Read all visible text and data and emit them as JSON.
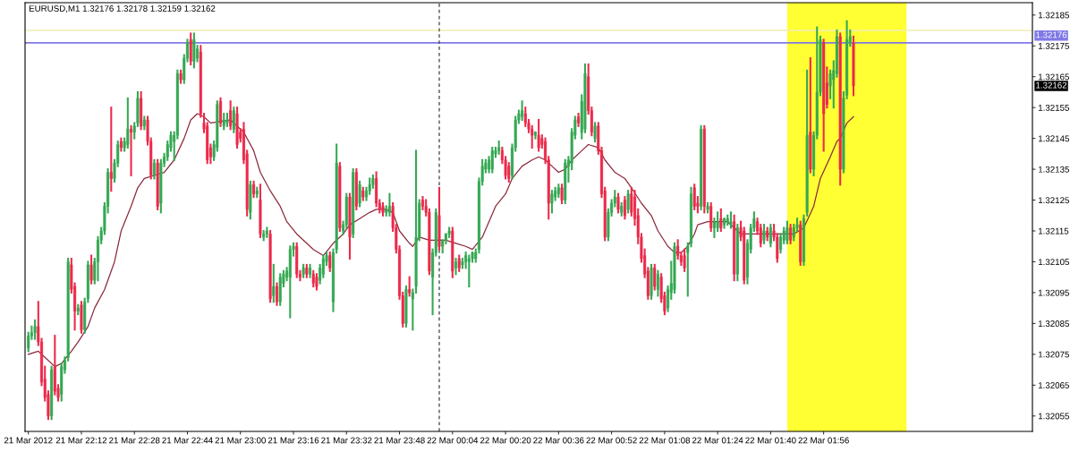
{
  "chart_data": {
    "type": "candlestick",
    "title": "EURUSD,M1 1.32176 1.32178 1.32159 1.32162",
    "x": [
      "2012-03-21T21:56",
      "2012-03-21T21:57",
      "2012-03-21T21:58",
      "2012-03-21T21:59",
      "2012-03-21T22:00",
      "2012-03-21T22:01",
      "2012-03-21T22:02",
      "2012-03-21T22:03",
      "2012-03-21T22:04",
      "2012-03-21T22:05",
      "2012-03-21T22:06",
      "2012-03-21T22:07",
      "2012-03-21T22:08",
      "2012-03-21T22:09",
      "2012-03-21T22:10",
      "2012-03-21T22:11",
      "2012-03-21T22:12",
      "2012-03-21T22:13",
      "2012-03-21T22:14",
      "2012-03-21T22:15",
      "2012-03-21T22:16",
      "2012-03-21T22:17",
      "2012-03-21T22:18",
      "2012-03-21T22:19",
      "2012-03-21T22:20",
      "2012-03-21T22:21",
      "2012-03-21T22:22",
      "2012-03-21T22:23",
      "2012-03-21T22:24",
      "2012-03-21T22:25",
      "2012-03-21T22:26",
      "2012-03-21T22:27",
      "2012-03-21T22:28",
      "2012-03-21T22:29",
      "2012-03-21T22:30",
      "2012-03-21T22:31",
      "2012-03-21T22:32",
      "2012-03-21T22:33",
      "2012-03-21T22:34",
      "2012-03-21T22:35",
      "2012-03-21T22:36",
      "2012-03-21T22:37",
      "2012-03-21T22:38",
      "2012-03-21T22:39",
      "2012-03-21T22:40",
      "2012-03-21T22:41",
      "2012-03-21T22:42",
      "2012-03-21T22:43",
      "2012-03-21T22:44",
      "2012-03-21T22:45",
      "2012-03-21T22:46",
      "2012-03-21T22:47",
      "2012-03-21T22:48",
      "2012-03-21T22:49",
      "2012-03-21T22:50",
      "2012-03-21T22:51",
      "2012-03-21T22:52",
      "2012-03-21T22:53",
      "2012-03-21T22:54",
      "2012-03-21T22:55",
      "2012-03-21T22:56",
      "2012-03-21T22:57",
      "2012-03-21T22:58",
      "2012-03-21T22:59",
      "2012-03-21T23:00",
      "2012-03-21T23:01",
      "2012-03-21T23:02",
      "2012-03-21T23:03",
      "2012-03-21T23:04",
      "2012-03-21T23:05",
      "2012-03-21T23:06",
      "2012-03-21T23:07",
      "2012-03-21T23:08",
      "2012-03-21T23:09",
      "2012-03-21T23:10",
      "2012-03-21T23:11",
      "2012-03-21T23:12",
      "2012-03-21T23:13",
      "2012-03-21T23:14",
      "2012-03-21T23:15",
      "2012-03-21T23:16",
      "2012-03-21T23:17",
      "2012-03-21T23:18",
      "2012-03-21T23:19",
      "2012-03-21T23:20",
      "2012-03-21T23:21",
      "2012-03-21T23:22",
      "2012-03-21T23:23",
      "2012-03-21T23:24",
      "2012-03-21T23:25",
      "2012-03-21T23:26",
      "2012-03-21T23:27",
      "2012-03-21T23:28",
      "2012-03-21T23:29",
      "2012-03-21T23:30",
      "2012-03-21T23:31",
      "2012-03-21T23:32",
      "2012-03-21T23:33",
      "2012-03-21T23:34",
      "2012-03-21T23:35",
      "2012-03-21T23:36",
      "2012-03-21T23:37",
      "2012-03-21T23:38",
      "2012-03-21T23:39",
      "2012-03-21T23:40",
      "2012-03-21T23:41",
      "2012-03-21T23:42",
      "2012-03-21T23:43",
      "2012-03-21T23:44",
      "2012-03-21T23:45",
      "2012-03-21T23:46",
      "2012-03-21T23:47",
      "2012-03-21T23:48",
      "2012-03-21T23:49",
      "2012-03-21T23:50",
      "2012-03-21T23:51",
      "2012-03-21T23:52",
      "2012-03-21T23:53",
      "2012-03-21T23:54",
      "2012-03-21T23:55",
      "2012-03-21T23:56",
      "2012-03-21T23:57",
      "2012-03-21T23:58",
      "2012-03-21T23:59",
      "2012-03-22T00:00",
      "2012-03-22T00:01",
      "2012-03-22T00:02",
      "2012-03-22T00:03",
      "2012-03-22T00:04",
      "2012-03-22T00:05",
      "2012-03-22T00:06",
      "2012-03-22T00:07",
      "2012-03-22T00:08",
      "2012-03-22T00:09",
      "2012-03-22T00:10",
      "2012-03-22T00:11",
      "2012-03-22T00:12",
      "2012-03-22T00:13",
      "2012-03-22T00:14",
      "2012-03-22T00:15",
      "2012-03-22T00:16",
      "2012-03-22T00:17",
      "2012-03-22T00:18",
      "2012-03-22T00:19",
      "2012-03-22T00:20",
      "2012-03-22T00:21",
      "2012-03-22T00:22",
      "2012-03-22T00:23",
      "2012-03-22T00:24",
      "2012-03-22T00:25",
      "2012-03-22T00:26",
      "2012-03-22T00:27",
      "2012-03-22T00:28",
      "2012-03-22T00:29",
      "2012-03-22T00:30",
      "2012-03-22T00:31",
      "2012-03-22T00:32",
      "2012-03-22T00:33",
      "2012-03-22T00:34",
      "2012-03-22T00:35",
      "2012-03-22T00:36",
      "2012-03-22T00:37",
      "2012-03-22T00:38",
      "2012-03-22T00:39",
      "2012-03-22T00:40",
      "2012-03-22T00:41",
      "2012-03-22T00:42",
      "2012-03-22T00:43",
      "2012-03-22T00:44",
      "2012-03-22T00:45",
      "2012-03-22T00:46",
      "2012-03-22T00:47",
      "2012-03-22T00:48",
      "2012-03-22T00:49",
      "2012-03-22T00:50",
      "2012-03-22T00:51",
      "2012-03-22T00:52",
      "2012-03-22T00:53",
      "2012-03-22T00:54",
      "2012-03-22T00:55",
      "2012-03-22T00:56",
      "2012-03-22T00:57",
      "2012-03-22T00:58",
      "2012-03-22T00:59",
      "2012-03-22T01:00",
      "2012-03-22T01:01",
      "2012-03-22T01:02",
      "2012-03-22T01:03",
      "2012-03-22T01:04",
      "2012-03-22T01:05",
      "2012-03-22T01:06",
      "2012-03-22T01:07",
      "2012-03-22T01:08",
      "2012-03-22T01:09",
      "2012-03-22T01:10",
      "2012-03-22T01:11",
      "2012-03-22T01:12",
      "2012-03-22T01:13",
      "2012-03-22T01:14",
      "2012-03-22T01:15",
      "2012-03-22T01:16",
      "2012-03-22T01:17",
      "2012-03-22T01:18",
      "2012-03-22T01:19",
      "2012-03-22T01:20",
      "2012-03-22T01:21",
      "2012-03-22T01:22",
      "2012-03-22T01:23",
      "2012-03-22T01:24",
      "2012-03-22T01:25",
      "2012-03-22T01:26",
      "2012-03-22T01:27",
      "2012-03-22T01:28",
      "2012-03-22T01:29",
      "2012-03-22T01:30",
      "2012-03-22T01:31",
      "2012-03-22T01:32",
      "2012-03-22T01:33",
      "2012-03-22T01:34",
      "2012-03-22T01:35",
      "2012-03-22T01:36",
      "2012-03-22T01:37",
      "2012-03-22T01:38",
      "2012-03-22T01:39",
      "2012-03-22T01:40",
      "2012-03-22T01:41",
      "2012-03-22T01:42",
      "2012-03-22T01:43",
      "2012-03-22T01:44",
      "2012-03-22T01:45",
      "2012-03-22T01:46",
      "2012-03-22T01:47",
      "2012-03-22T01:48",
      "2012-03-22T01:49",
      "2012-03-22T01:50",
      "2012-03-22T01:51",
      "2012-03-22T01:52",
      "2012-03-22T01:53",
      "2012-03-22T01:54",
      "2012-03-22T01:55",
      "2012-03-22T01:56",
      "2012-03-22T01:57",
      "2012-03-22T01:58",
      "2012-03-22T01:59",
      "2012-03-22T02:00",
      "2012-03-22T02:01",
      "2012-03-22T02:02",
      "2012-03-22T02:03",
      "2012-03-22T02:04",
      "2012-03-22T02:05"
    ],
    "ohlc": [
      [
        1.32077,
        1.32082,
        1.32076,
        1.32081
      ],
      [
        1.32081,
        1.32084,
        1.3208,
        1.32082
      ],
      [
        1.32082,
        1.32086,
        1.3208,
        1.32084
      ],
      [
        1.32084,
        1.32092,
        1.32078,
        1.32079
      ],
      [
        1.32079,
        1.3208,
        1.32065,
        1.32066
      ],
      [
        1.32067,
        1.32071,
        1.3206,
        1.32061
      ],
      [
        1.32062,
        1.32063,
        1.32054,
        1.32055
      ],
      [
        1.32055,
        1.32071,
        1.32054,
        1.3207
      ],
      [
        1.32071,
        1.32081,
        1.32062,
        1.32063
      ],
      [
        1.32064,
        1.32065,
        1.3206,
        1.32061
      ],
      [
        1.32062,
        1.32072,
        1.3206,
        1.32071
      ],
      [
        1.3207,
        1.32074,
        1.32069,
        1.32073
      ],
      [
        1.32074,
        1.32106,
        1.32073,
        1.32105
      ],
      [
        1.32104,
        1.32106,
        1.32095,
        1.32096
      ],
      [
        1.32097,
        1.32098,
        1.32083,
        1.32089
      ],
      [
        1.32089,
        1.32091,
        1.32088,
        1.3209
      ],
      [
        1.32091,
        1.32092,
        1.32082,
        1.32083
      ],
      [
        1.32083,
        1.32093,
        1.32082,
        1.32092
      ],
      [
        1.32093,
        1.32105,
        1.32092,
        1.32104
      ],
      [
        1.32104,
        1.32107,
        1.32098,
        1.32099
      ],
      [
        1.32099,
        1.32106,
        1.32098,
        1.32105
      ],
      [
        1.32105,
        1.32113,
        1.32099,
        1.32112
      ],
      [
        1.32112,
        1.32116,
        1.32111,
        1.32115
      ],
      [
        1.32115,
        1.32124,
        1.32114,
        1.32123
      ],
      [
        1.32123,
        1.32135,
        1.32121,
        1.32134
      ],
      [
        1.32134,
        1.32155,
        1.32128,
        1.32132
      ],
      [
        1.32132,
        1.32138,
        1.32131,
        1.32137
      ],
      [
        1.32137,
        1.32144,
        1.32136,
        1.32143
      ],
      [
        1.32144,
        1.32145,
        1.32141,
        1.32142
      ],
      [
        1.32142,
        1.32145,
        1.32141,
        1.32144
      ],
      [
        1.32143,
        1.32158,
        1.32142,
        1.32148
      ],
      [
        1.32148,
        1.32149,
        1.32133,
        1.32147
      ],
      [
        1.32147,
        1.3215,
        1.32145,
        1.32149
      ],
      [
        1.3215,
        1.3216,
        1.32149,
        1.32158
      ],
      [
        1.32158,
        1.3216,
        1.32148,
        1.32149
      ],
      [
        1.32149,
        1.32152,
        1.32148,
        1.32151
      ],
      [
        1.32151,
        1.32152,
        1.32143,
        1.32144
      ],
      [
        1.32144,
        1.32145,
        1.32132,
        1.32133
      ],
      [
        1.32133,
        1.32138,
        1.32132,
        1.32137
      ],
      [
        1.32137,
        1.32138,
        1.32122,
        1.32123
      ],
      [
        1.32124,
        1.32138,
        1.32121,
        1.32137
      ],
      [
        1.32137,
        1.3214,
        1.32136,
        1.32139
      ],
      [
        1.32139,
        1.32144,
        1.32138,
        1.32143
      ],
      [
        1.32142,
        1.32147,
        1.32141,
        1.32146
      ],
      [
        1.32144,
        1.32147,
        1.32138,
        1.32146
      ],
      [
        1.32146,
        1.32167,
        1.32145,
        1.32166
      ],
      [
        1.32166,
        1.32167,
        1.32163,
        1.32164
      ],
      [
        1.32164,
        1.32172,
        1.32163,
        1.32171
      ],
      [
        1.32171,
        1.32177,
        1.3217,
        1.32176
      ],
      [
        1.32177,
        1.32179,
        1.32169,
        1.3217
      ],
      [
        1.3217,
        1.32179,
        1.32168,
        1.32177
      ],
      [
        1.32171,
        1.32175,
        1.3217,
        1.32174
      ],
      [
        1.32173,
        1.32175,
        1.32152,
        1.32153
      ],
      [
        1.3215,
        1.32153,
        1.32147,
        1.32148
      ],
      [
        1.32149,
        1.3215,
        1.32137,
        1.32138
      ],
      [
        1.32142,
        1.32143,
        1.32137,
        1.32139
      ],
      [
        1.32139,
        1.32144,
        1.32138,
        1.32143
      ],
      [
        1.32142,
        1.32157,
        1.32141,
        1.32156
      ],
      [
        1.32157,
        1.32158,
        1.32149,
        1.3215
      ],
      [
        1.32149,
        1.32153,
        1.32148,
        1.32151
      ],
      [
        1.3215,
        1.32153,
        1.32149,
        1.32151
      ],
      [
        1.32154,
        1.32157,
        1.32148,
        1.32149
      ],
      [
        1.32148,
        1.32155,
        1.32147,
        1.32154
      ],
      [
        1.32153,
        1.32155,
        1.32142,
        1.32143
      ],
      [
        1.32147,
        1.32148,
        1.32144,
        1.32145
      ],
      [
        1.32148,
        1.3215,
        1.32137,
        1.32138
      ],
      [
        1.3214,
        1.32141,
        1.3212,
        1.32122
      ],
      [
        1.32121,
        1.32131,
        1.32119,
        1.3213
      ],
      [
        1.3213,
        1.32131,
        1.32126,
        1.32127
      ],
      [
        1.32127,
        1.32129,
        1.32126,
        1.32128
      ],
      [
        1.32125,
        1.3213,
        1.32113,
        1.32114
      ],
      [
        1.32113,
        1.32115,
        1.32112,
        1.32114
      ],
      [
        1.32114,
        1.32116,
        1.32113,
        1.32115
      ],
      [
        1.32114,
        1.32115,
        1.32092,
        1.32093
      ],
      [
        1.32094,
        1.32104,
        1.32092,
        1.32097
      ],
      [
        1.32097,
        1.32098,
        1.32091,
        1.32092
      ],
      [
        1.32092,
        1.32101,
        1.32091,
        1.321
      ],
      [
        1.32098,
        1.32102,
        1.32097,
        1.32101
      ],
      [
        1.321,
        1.32103,
        1.32099,
        1.32102
      ],
      [
        1.321,
        1.3211,
        1.32087,
        1.32109
      ],
      [
        1.32109,
        1.32111,
        1.32107,
        1.3211
      ],
      [
        1.3211,
        1.32111,
        1.321,
        1.32101
      ],
      [
        1.32101,
        1.32102,
        1.32099,
        1.321
      ],
      [
        1.32101,
        1.32104,
        1.321,
        1.32103
      ],
      [
        1.32103,
        1.32104,
        1.321,
        1.32101
      ],
      [
        1.32101,
        1.32104,
        1.321,
        1.32103
      ],
      [
        1.32101,
        1.32102,
        1.32097,
        1.32098
      ],
      [
        1.321,
        1.32101,
        1.32096,
        1.32097
      ],
      [
        1.32099,
        1.32104,
        1.32098,
        1.32103
      ],
      [
        1.32101,
        1.32107,
        1.321,
        1.32106
      ],
      [
        1.32105,
        1.32108,
        1.32104,
        1.32107
      ],
      [
        1.32107,
        1.32108,
        1.32102,
        1.32103
      ],
      [
        1.32092,
        1.32109,
        1.32089,
        1.32108
      ],
      [
        1.32109,
        1.32143,
        1.32108,
        1.32137
      ],
      [
        1.32136,
        1.32137,
        1.32115,
        1.32116
      ],
      [
        1.32115,
        1.32118,
        1.32114,
        1.32117
      ],
      [
        1.32117,
        1.32127,
        1.32116,
        1.32126
      ],
      [
        1.32126,
        1.32127,
        1.32106,
        1.32113
      ],
      [
        1.32114,
        1.32135,
        1.32113,
        1.32134
      ],
      [
        1.32134,
        1.32135,
        1.32122,
        1.32123
      ],
      [
        1.32124,
        1.32131,
        1.32123,
        1.3213
      ],
      [
        1.32128,
        1.32129,
        1.32125,
        1.32126
      ],
      [
        1.32126,
        1.32129,
        1.32125,
        1.32128
      ],
      [
        1.32128,
        1.32132,
        1.32127,
        1.3213
      ],
      [
        1.3213,
        1.32133,
        1.32129,
        1.32132
      ],
      [
        1.32132,
        1.32134,
        1.32123,
        1.32124
      ],
      [
        1.32124,
        1.32125,
        1.32121,
        1.32122
      ],
      [
        1.32123,
        1.32124,
        1.3212,
        1.32121
      ],
      [
        1.32121,
        1.32123,
        1.3212,
        1.32122
      ],
      [
        1.32121,
        1.32127,
        1.3212,
        1.32123
      ],
      [
        1.32123,
        1.32124,
        1.32115,
        1.32116
      ],
      [
        1.32116,
        1.32117,
        1.32108,
        1.32109
      ],
      [
        1.32109,
        1.3211,
        1.32093,
        1.32094
      ],
      [
        1.32094,
        1.32095,
        1.32084,
        1.32085
      ],
      [
        1.32085,
        1.32097,
        1.32084,
        1.32096
      ],
      [
        1.32096,
        1.321,
        1.32094,
        1.32095
      ],
      [
        1.32093,
        1.32096,
        1.32083,
        1.32095
      ],
      [
        1.32097,
        1.32141,
        1.32095,
        1.32113
      ],
      [
        1.32113,
        1.32125,
        1.32112,
        1.32124
      ],
      [
        1.32125,
        1.32126,
        1.32122,
        1.32123
      ],
      [
        1.32123,
        1.32125,
        1.3212,
        1.32121
      ],
      [
        1.32121,
        1.32122,
        1.32101,
        1.32102
      ],
      [
        1.321,
        1.32109,
        1.32088,
        1.32108
      ],
      [
        1.32108,
        1.32122,
        1.32107,
        1.32121
      ],
      [
        1.3212,
        1.32129,
        1.32109,
        1.3211
      ],
      [
        1.3211,
        1.32112,
        1.32108,
        1.32112
      ],
      [
        1.32112,
        1.32114,
        1.32111,
        1.32114
      ],
      [
        1.32114,
        1.32116,
        1.32113,
        1.32115
      ],
      [
        1.32115,
        1.32116,
        1.321,
        1.32102
      ],
      [
        1.32103,
        1.32106,
        1.32101,
        1.32105
      ],
      [
        1.32106,
        1.32107,
        1.32102,
        1.32103
      ],
      [
        1.32104,
        1.32106,
        1.32103,
        1.32105
      ],
      [
        1.32105,
        1.32108,
        1.32103,
        1.32107
      ],
      [
        1.32105,
        1.32107,
        1.32097,
        1.32106
      ],
      [
        1.32106,
        1.32108,
        1.32105,
        1.32108
      ],
      [
        1.32106,
        1.32109,
        1.32105,
        1.32108
      ],
      [
        1.32109,
        1.32132,
        1.32108,
        1.32131
      ],
      [
        1.32131,
        1.32138,
        1.3213,
        1.32136
      ],
      [
        1.32135,
        1.32138,
        1.32134,
        1.32137
      ],
      [
        1.32135,
        1.32139,
        1.32134,
        1.32138
      ],
      [
        1.32135,
        1.32142,
        1.32134,
        1.32141
      ],
      [
        1.3214,
        1.32142,
        1.32139,
        1.32141
      ],
      [
        1.32141,
        1.32144,
        1.3214,
        1.32142
      ],
      [
        1.32141,
        1.32142,
        1.32137,
        1.32138
      ],
      [
        1.32138,
        1.32139,
        1.32132,
        1.32133
      ],
      [
        1.32136,
        1.32137,
        1.32131,
        1.32132
      ],
      [
        1.32133,
        1.32143,
        1.32132,
        1.32142
      ],
      [
        1.32142,
        1.32152,
        1.32141,
        1.32151
      ],
      [
        1.32151,
        1.32154,
        1.3215,
        1.32153
      ],
      [
        1.32152,
        1.32157,
        1.32151,
        1.32154
      ],
      [
        1.32153,
        1.32155,
        1.32149,
        1.3215
      ],
      [
        1.3215,
        1.32151,
        1.32147,
        1.32148
      ],
      [
        1.32148,
        1.32149,
        1.32142,
        1.32146
      ],
      [
        1.32146,
        1.32147,
        1.32145,
        1.32147
      ],
      [
        1.32146,
        1.32151,
        1.32141,
        1.32142
      ],
      [
        1.32145,
        1.32146,
        1.32142,
        1.32143
      ],
      [
        1.32144,
        1.32145,
        1.32137,
        1.32138
      ],
      [
        1.32138,
        1.32139,
        1.32119,
        1.32124
      ],
      [
        1.32124,
        1.32128,
        1.32121,
        1.32127
      ],
      [
        1.32126,
        1.32129,
        1.32125,
        1.32128
      ],
      [
        1.32127,
        1.3213,
        1.32126,
        1.32129
      ],
      [
        1.32129,
        1.3213,
        1.32124,
        1.32125
      ],
      [
        1.32125,
        1.32138,
        1.32124,
        1.32137
      ],
      [
        1.32136,
        1.32139,
        1.32131,
        1.32138
      ],
      [
        1.32137,
        1.32148,
        1.32135,
        1.32147
      ],
      [
        1.32146,
        1.32152,
        1.32145,
        1.32151
      ],
      [
        1.32152,
        1.32153,
        1.32149,
        1.3215
      ],
      [
        1.32147,
        1.32159,
        1.32145,
        1.32157
      ],
      [
        1.32148,
        1.32169,
        1.32147,
        1.32166
      ],
      [
        1.32165,
        1.32169,
        1.32153,
        1.32154
      ],
      [
        1.32154,
        1.32155,
        1.32146,
        1.32147
      ],
      [
        1.32145,
        1.3215,
        1.32144,
        1.32149
      ],
      [
        1.32149,
        1.3215,
        1.3214,
        1.32141
      ],
      [
        1.32141,
        1.32142,
        1.32126,
        1.32127
      ],
      [
        1.32128,
        1.32129,
        1.32112,
        1.32113
      ],
      [
        1.32113,
        1.32122,
        1.32112,
        1.32121
      ],
      [
        1.32121,
        1.32125,
        1.3212,
        1.32124
      ],
      [
        1.32124,
        1.32128,
        1.32123,
        1.32126
      ],
      [
        1.32126,
        1.32127,
        1.32121,
        1.32122
      ],
      [
        1.32121,
        1.32124,
        1.3212,
        1.32123
      ],
      [
        1.32125,
        1.32126,
        1.32119,
        1.3212
      ],
      [
        1.32122,
        1.32128,
        1.32121,
        1.32127
      ],
      [
        1.32127,
        1.32129,
        1.3212,
        1.32121
      ],
      [
        1.32126,
        1.32128,
        1.32117,
        1.32119
      ],
      [
        1.3212,
        1.32122,
        1.32111,
        1.32113
      ],
      [
        1.32113,
        1.32114,
        1.32105,
        1.32106
      ],
      [
        1.32107,
        1.32109,
        1.321,
        1.32101
      ],
      [
        1.32102,
        1.32103,
        1.32093,
        1.32094
      ],
      [
        1.32094,
        1.32104,
        1.32093,
        1.32103
      ],
      [
        1.32103,
        1.32104,
        1.32096,
        1.32097
      ],
      [
        1.32096,
        1.32102,
        1.32094,
        1.32101
      ],
      [
        1.321,
        1.32101,
        1.32092,
        1.32093
      ],
      [
        1.32094,
        1.32095,
        1.32088,
        1.32089
      ],
      [
        1.3209,
        1.32097,
        1.32089,
        1.32096
      ],
      [
        1.32095,
        1.32105,
        1.32093,
        1.32098
      ],
      [
        1.32096,
        1.32111,
        1.32095,
        1.3211
      ],
      [
        1.3211,
        1.32112,
        1.32106,
        1.32107
      ],
      [
        1.32107,
        1.32108,
        1.32104,
        1.32105
      ],
      [
        1.32107,
        1.32109,
        1.32102,
        1.32103
      ],
      [
        1.32108,
        1.32111,
        1.32094,
        1.3211
      ],
      [
        1.32111,
        1.32129,
        1.3211,
        1.32127
      ],
      [
        1.32129,
        1.3213,
        1.32122,
        1.32123
      ],
      [
        1.32124,
        1.32126,
        1.32121,
        1.32123
      ],
      [
        1.32123,
        1.32149,
        1.32122,
        1.32148
      ],
      [
        1.32148,
        1.32149,
        1.32121,
        1.32123
      ],
      [
        1.32122,
        1.32124,
        1.32121,
        1.32123
      ],
      [
        1.32123,
        1.32124,
        1.32115,
        1.32116
      ],
      [
        1.32116,
        1.32119,
        1.32113,
        1.32118
      ],
      [
        1.32116,
        1.32121,
        1.32115,
        1.32118
      ],
      [
        1.32119,
        1.32122,
        1.32115,
        1.32116
      ],
      [
        1.32117,
        1.32119,
        1.32116,
        1.32119
      ],
      [
        1.32118,
        1.3212,
        1.32117,
        1.32119
      ],
      [
        1.32117,
        1.32121,
        1.32116,
        1.32118
      ],
      [
        1.32118,
        1.3212,
        1.32099,
        1.32101
      ],
      [
        1.32101,
        1.32117,
        1.32099,
        1.32116
      ],
      [
        1.32116,
        1.32118,
        1.32112,
        1.32113
      ],
      [
        1.32115,
        1.32116,
        1.32098,
        1.32099
      ],
      [
        1.321,
        1.32112,
        1.32098,
        1.32111
      ],
      [
        1.32109,
        1.32117,
        1.32108,
        1.32116
      ],
      [
        1.32116,
        1.32121,
        1.32115,
        1.32119
      ],
      [
        1.32118,
        1.32119,
        1.32114,
        1.32115
      ],
      [
        1.32116,
        1.32117,
        1.3211,
        1.32111
      ],
      [
        1.32112,
        1.32117,
        1.32111,
        1.32115
      ],
      [
        1.32115,
        1.32116,
        1.32112,
        1.32113
      ],
      [
        1.32111,
        1.32117,
        1.3211,
        1.32116
      ],
      [
        1.32115,
        1.32117,
        1.32112,
        1.32113
      ],
      [
        1.32113,
        1.32114,
        1.32105,
        1.32106
      ],
      [
        1.32109,
        1.32114,
        1.32108,
        1.32113
      ],
      [
        1.32112,
        1.32116,
        1.32111,
        1.32115
      ],
      [
        1.32112,
        1.32118,
        1.32111,
        1.32116
      ],
      [
        1.32116,
        1.32117,
        1.32111,
        1.32112
      ],
      [
        1.32113,
        1.32117,
        1.32112,
        1.32116
      ],
      [
        1.32116,
        1.32119,
        1.32115,
        1.32117
      ],
      [
        1.32117,
        1.32118,
        1.32104,
        1.32105
      ],
      [
        1.32105,
        1.3212,
        1.32104,
        1.32119
      ],
      [
        1.32121,
        1.32167,
        1.3212,
        1.32146
      ],
      [
        1.32147,
        1.32171,
        1.32134,
        1.32135
      ],
      [
        1.32135,
        1.32147,
        1.32133,
        1.32146
      ],
      [
        1.32146,
        1.32181,
        1.32145,
        1.3216
      ],
      [
        1.3216,
        1.32178,
        1.32159,
        1.32177
      ],
      [
        1.32176,
        1.32177,
        1.32141,
        1.32153
      ],
      [
        1.32163,
        1.32168,
        1.32155,
        1.32156
      ],
      [
        1.32162,
        1.32167,
        1.32158,
        1.32166
      ],
      [
        1.32164,
        1.3217,
        1.32155,
        1.32167
      ],
      [
        1.32166,
        1.3218,
        1.32165,
        1.32178
      ],
      [
        1.32178,
        1.32179,
        1.3213,
        1.32135
      ],
      [
        1.32135,
        1.3216,
        1.32134,
        1.32158
      ],
      [
        1.32159,
        1.32183,
        1.32158,
        1.32177
      ],
      [
        1.32176,
        1.3218,
        1.32175,
        1.32178
      ],
      [
        1.32176,
        1.32178,
        1.32159,
        1.32162
      ]
    ],
    "colors": [
      "#35a853",
      "#35a853",
      "#35a853",
      "#ec2a4b",
      "#ec2a4b",
      "#ec2a4b",
      "#ec2a4b",
      "#35a853",
      "#ec2a4b",
      "#ec2a4b",
      "#35a853",
      "#35a853",
      "#35a853",
      "#ec2a4b",
      "#ec2a4b",
      "#35a853",
      "#ec2a4b",
      "#35a853",
      "#35a853",
      "#ec2a4b",
      "#35a853",
      "#35a853",
      "#35a853",
      "#35a853",
      "#35a853",
      "#ec2a4b",
      "#35a853",
      "#35a853",
      "#ec2a4b",
      "#35a853",
      "#35a853",
      "#ec2a4b",
      "#35a853",
      "#35a853",
      "#ec2a4b",
      "#35a853",
      "#ec2a4b",
      "#ec2a4b",
      "#35a853",
      "#ec2a4b",
      "#35a853",
      "#35a853",
      "#35a853",
      "#35a853",
      "#35a853",
      "#35a853",
      "#ec2a4b",
      "#35a853",
      "#35a853",
      "#ec2a4b",
      "#35a853",
      "#35a853",
      "#ec2a4b",
      "#ec2a4b",
      "#ec2a4b",
      "#ec2a4b",
      "#35a853",
      "#35a853",
      "#ec2a4b",
      "#35a853",
      "#35a853",
      "#ec2a4b",
      "#35a853",
      "#ec2a4b",
      "#ec2a4b",
      "#ec2a4b",
      "#ec2a4b",
      "#35a853",
      "#ec2a4b",
      "#35a853",
      "#ec2a4b",
      "#35a853",
      "#35a853",
      "#ec2a4b",
      "#35a853",
      "#ec2a4b",
      "#35a853",
      "#35a853",
      "#35a853",
      "#35a853",
      "#35a853",
      "#ec2a4b",
      "#ec2a4b",
      "#35a853",
      "#ec2a4b",
      "#35a853",
      "#ec2a4b",
      "#ec2a4b",
      "#35a853",
      "#35a853",
      "#35a853",
      "#ec2a4b",
      "#35a853",
      "#35a853",
      "#ec2a4b",
      "#35a853",
      "#35a853",
      "#ec2a4b",
      "#35a853",
      "#ec2a4b",
      "#35a853",
      "#ec2a4b",
      "#35a853",
      "#35a853",
      "#35a853",
      "#ec2a4b",
      "#ec2a4b",
      "#ec2a4b",
      "#35a853",
      "#35a853",
      "#ec2a4b",
      "#ec2a4b",
      "#ec2a4b",
      "#ec2a4b",
      "#35a853",
      "#ec2a4b",
      "#35a853",
      "#35a853",
      "#35a853",
      "#ec2a4b",
      "#ec2a4b",
      "#ec2a4b",
      "#35a853",
      "#35a853",
      "#ec2a4b",
      "#35a853",
      "#35a853",
      "#35a853",
      "#ec2a4b",
      "#35a853",
      "#ec2a4b",
      "#35a853",
      "#35a853",
      "#35a853",
      "#35a853",
      "#35a853",
      "#35a853",
      "#35a853",
      "#35a853",
      "#35a853",
      "#35a853",
      "#35a853",
      "#35a853",
      "#ec2a4b",
      "#ec2a4b",
      "#ec2a4b",
      "#35a853",
      "#35a853",
      "#35a853",
      "#35a853",
      "#ec2a4b",
      "#ec2a4b",
      "#ec2a4b",
      "#35a853",
      "#ec2a4b",
      "#ec2a4b",
      "#ec2a4b",
      "#ec2a4b",
      "#35a853",
      "#35a853",
      "#35a853",
      "#ec2a4b",
      "#35a853",
      "#35a853",
      "#35a853",
      "#35a853",
      "#ec2a4b",
      "#35a853",
      "#35a853",
      "#ec2a4b",
      "#ec2a4b",
      "#35a853",
      "#ec2a4b",
      "#ec2a4b",
      "#ec2a4b",
      "#35a853",
      "#35a853",
      "#35a853",
      "#ec2a4b",
      "#35a853",
      "#ec2a4b",
      "#35a853",
      "#ec2a4b",
      "#ec2a4b",
      "#ec2a4b",
      "#ec2a4b",
      "#ec2a4b",
      "#ec2a4b",
      "#35a853",
      "#ec2a4b",
      "#35a853",
      "#ec2a4b",
      "#ec2a4b",
      "#35a853",
      "#35a853",
      "#35a853",
      "#ec2a4b",
      "#ec2a4b",
      "#ec2a4b",
      "#35a853",
      "#35a853",
      "#ec2a4b",
      "#ec2a4b",
      "#35a853",
      "#ec2a4b",
      "#35a853",
      "#ec2a4b",
      "#35a853",
      "#35a853",
      "#ec2a4b",
      "#35a853",
      "#35a853",
      "#35a853",
      "#ec2a4b",
      "#35a853",
      "#ec2a4b",
      "#ec2a4b",
      "#35a853",
      "#35a853",
      "#35a853",
      "#ec2a4b",
      "#ec2a4b",
      "#35a853",
      "#ec2a4b",
      "#35a853",
      "#ec2a4b",
      "#ec2a4b",
      "#35a853",
      "#35a853",
      "#35a853",
      "#ec2a4b",
      "#35a853",
      "#35a853",
      "#ec2a4b",
      "#35a853",
      "#35a853",
      "#ec2a4b",
      "#35a853",
      "#35a853",
      "#35a853",
      "#ec2a4b",
      "#ec2a4b",
      "#35a853",
      "#35a853",
      "#35a853",
      "#ec2a4b",
      "#35a853",
      "#35a853",
      "#35a853",
      "#ec2a4b"
    ],
    "series": [
      {
        "type": "line",
        "color": "#8c2a3c",
        "x": [
          "2012-03-21T21:56",
          "2012-03-21T21:59",
          "2012-03-21T22:01",
          "2012-03-21T22:04",
          "2012-03-21T22:06",
          "2012-03-21T22:09",
          "2012-03-21T22:11",
          "2012-03-21T22:14",
          "2012-03-21T22:16",
          "2012-03-21T22:19",
          "2012-03-21T22:22",
          "2012-03-21T22:24",
          "2012-03-21T22:27",
          "2012-03-21T22:29",
          "2012-03-21T22:31",
          "2012-03-21T22:34",
          "2012-03-21T22:37",
          "2012-03-21T22:40",
          "2012-03-21T22:43",
          "2012-03-21T22:45",
          "2012-03-21T22:47",
          "2012-03-21T22:49",
          "2012-03-21T22:51",
          "2012-03-21T22:57",
          "2012-03-21T22:59",
          "2012-03-21T23:01",
          "2012-03-21T23:04",
          "2012-03-21T23:06",
          "2012-03-21T23:09",
          "2012-03-21T23:12",
          "2012-03-21T23:14",
          "2012-03-21T23:17",
          "2012-03-21T23:20",
          "2012-03-21T23:22",
          "2012-03-21T23:25",
          "2012-03-21T23:28",
          "2012-03-21T23:31",
          "2012-03-21T23:33",
          "2012-03-21T23:36",
          "2012-03-21T23:39",
          "2012-03-21T23:41",
          "2012-03-21T23:44",
          "2012-03-21T23:46",
          "2012-03-21T23:48",
          "2012-03-21T23:51",
          "2012-03-21T23:52",
          "2012-03-21T23:54",
          "2012-03-21T23:57",
          "2012-03-22T00:02",
          "2012-03-22T00:05",
          "2012-03-22T00:08",
          "2012-03-22T00:10",
          "2012-03-22T00:13",
          "2012-03-22T00:15",
          "2012-03-22T00:17",
          "2012-03-22T00:20",
          "2012-03-22T00:22",
          "2012-03-22T00:25",
          "2012-03-22T00:28",
          "2012-03-22T00:30",
          "2012-03-22T00:32",
          "2012-03-22T00:34",
          "2012-03-22T00:36",
          "2012-03-22T00:38",
          "2012-03-22T00:40",
          "2012-03-22T00:43",
          "2012-03-22T00:45",
          "2012-03-22T00:48",
          "2012-03-22T00:50",
          "2012-03-22T00:53",
          "2012-03-22T00:56",
          "2012-03-22T00:58",
          "2012-03-22T01:01",
          "2012-03-22T01:04",
          "2012-03-22T01:06",
          "2012-03-22T01:09",
          "2012-03-22T01:11",
          "2012-03-22T01:13",
          "2012-03-22T01:15",
          "2012-03-22T01:17",
          "2012-03-22T01:18",
          "2012-03-22T01:21",
          "2012-03-22T01:24",
          "2012-03-22T01:27",
          "2012-03-22T01:31",
          "2012-03-22T01:34",
          "2012-03-22T01:39",
          "2012-03-22T01:43",
          "2012-03-22T01:47",
          "2012-03-22T01:50",
          "2012-03-22T01:53",
          "2012-03-22T01:55",
          "2012-03-22T01:58",
          "2012-03-22T02:00",
          "2012-03-22T02:01",
          "2012-03-22T02:03",
          "2012-03-22T02:05"
        ],
        "values": [
          1.32075,
          1.32076,
          1.32074,
          1.32071,
          1.32072,
          1.32076,
          1.32079,
          1.32084,
          1.3209,
          1.32096,
          1.32105,
          1.32115,
          1.32123,
          1.32129,
          1.32132,
          1.32133,
          1.32134,
          1.32138,
          1.32145,
          1.32151,
          1.32153,
          1.32152,
          1.3215,
          1.32151,
          1.32149,
          1.32147,
          1.32141,
          1.32134,
          1.32128,
          1.32123,
          1.32118,
          1.32114,
          1.32111,
          1.32109,
          1.32107,
          1.32111,
          1.32114,
          1.32117,
          1.32119,
          1.32121,
          1.32122,
          1.32122,
          1.32121,
          1.32115,
          1.32111,
          1.3211,
          1.32113,
          1.32112,
          1.32112,
          1.32111,
          1.3211,
          1.32109,
          1.32113,
          1.32118,
          1.32123,
          1.32127,
          1.32132,
          1.32136,
          1.32138,
          1.32139,
          1.32138,
          1.32136,
          1.32134,
          1.32135,
          1.32138,
          1.32141,
          1.32143,
          1.32142,
          1.32138,
          1.32134,
          1.32132,
          1.32129,
          1.32124,
          1.3212,
          1.32115,
          1.3211,
          1.32108,
          1.32108,
          1.3211,
          1.32114,
          1.32117,
          1.32118,
          1.32118,
          1.32118,
          1.32114,
          1.32114,
          1.32114,
          1.32114,
          1.32114,
          1.32116,
          1.32123,
          1.32132,
          1.32139,
          1.32144,
          1.32145,
          1.3215,
          1.32152
        ]
      }
    ],
    "xlim": [
      "2012-03-21T21:55",
      "2012-03-22T02:59"
    ],
    "ylim": [
      1.3205,
      1.32189
    ],
    "xticks": [
      {
        "value": "2012-03-21T21:56",
        "label": "21 Mar 2012"
      },
      {
        "value": "2012-03-21T22:12",
        "label": "21 Mar 22:12"
      },
      {
        "value": "2012-03-21T22:28",
        "label": "21 Mar 22:28"
      },
      {
        "value": "2012-03-21T22:44",
        "label": "21 Mar 22:44"
      },
      {
        "value": "2012-03-21T23:00",
        "label": "21 Mar 23:00"
      },
      {
        "value": "2012-03-21T23:16",
        "label": "21 Mar 23:16"
      },
      {
        "value": "2012-03-21T23:32",
        "label": "21 Mar 23:32"
      },
      {
        "value": "2012-03-21T23:48",
        "label": "21 Mar 23:48"
      },
      {
        "value": "2012-03-22T00:04",
        "label": "22 Mar 00:04"
      },
      {
        "value": "2012-03-22T00:20",
        "label": "22 Mar 00:20"
      },
      {
        "value": "2012-03-22T00:36",
        "label": "22 Mar 00:36"
      },
      {
        "value": "2012-03-22T00:52",
        "label": "22 Mar 00:52"
      },
      {
        "value": "2012-03-22T01:08",
        "label": "22 Mar 01:08"
      },
      {
        "value": "2012-03-22T01:24",
        "label": "22 Mar 01:24"
      },
      {
        "value": "2012-03-22T01:40",
        "label": "22 Mar 01:40"
      },
      {
        "value": "2012-03-22T01:56",
        "label": "22 Mar 01:56"
      }
    ],
    "yticks": [
      1.32055,
      1.32065,
      1.32075,
      1.32085,
      1.32095,
      1.32105,
      1.32115,
      1.32125,
      1.32135,
      1.32145,
      1.32155,
      1.32165,
      1.32175,
      1.32185
    ],
    "ref_lines": [
      {
        "axis": "y",
        "value": 1.32176,
        "label": "1.32176",
        "color": "#7f78e6",
        "line_style": "solid"
      },
      {
        "axis": "y",
        "value": 1.3218,
        "color": "#f1edb4",
        "line_style": "solid"
      },
      {
        "axis": "x",
        "value": "2012-03-22T00:00",
        "color": "#404040",
        "line_style": "dashed"
      }
    ],
    "bands": [
      {
        "axis": "x",
        "from": "2012-03-22T01:45",
        "to": "2012-03-22T02:21",
        "color": "#ffff33"
      }
    ],
    "annotations": [
      {
        "text": "1.32162",
        "y": 1.32162
      }
    ]
  }
}
